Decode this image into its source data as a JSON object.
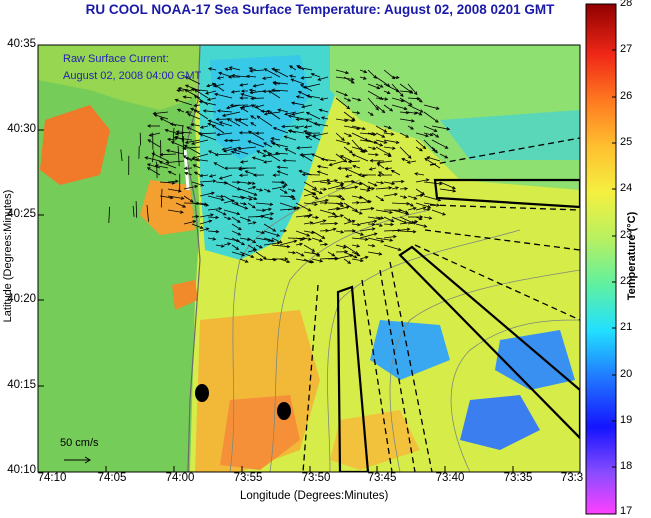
{
  "title": "RU COOL  NOAA-17  Sea Surface Temperature:  August 02, 2008 0201 GMT",
  "annotation": {
    "line1": "Raw Surface Current:",
    "line2": "August 02, 2008 04:00 GMT"
  },
  "axes": {
    "xlabel": "Longitude (Degrees:Minutes)",
    "ylabel": "Latitude (Degrees:Minutes)",
    "lat_ticks": [
      "40:35",
      "40:30",
      "40:25",
      "40:20",
      "40:15",
      "40:10"
    ],
    "lon_ticks": [
      "74:10",
      "74:05",
      "74:00",
      "73:55",
      "73:50",
      "73:45",
      "73:40",
      "73:35",
      "73:3"
    ]
  },
  "scale": {
    "label": "50 cm/s"
  },
  "colorbar": {
    "label": "Temperature (°C)",
    "min": 17,
    "max": 28,
    "ticks": [
      "28",
      "27",
      "26",
      "25",
      "24",
      "23",
      "22",
      "21",
      "20",
      "19",
      "18",
      "17"
    ]
  },
  "colors": {
    "title": "#1a1aa8",
    "annotation": "#2323b0",
    "land_green": "#6fcc55",
    "sst_warm": "#f0e04a",
    "sst_cool": "#3ad8e0"
  }
}
